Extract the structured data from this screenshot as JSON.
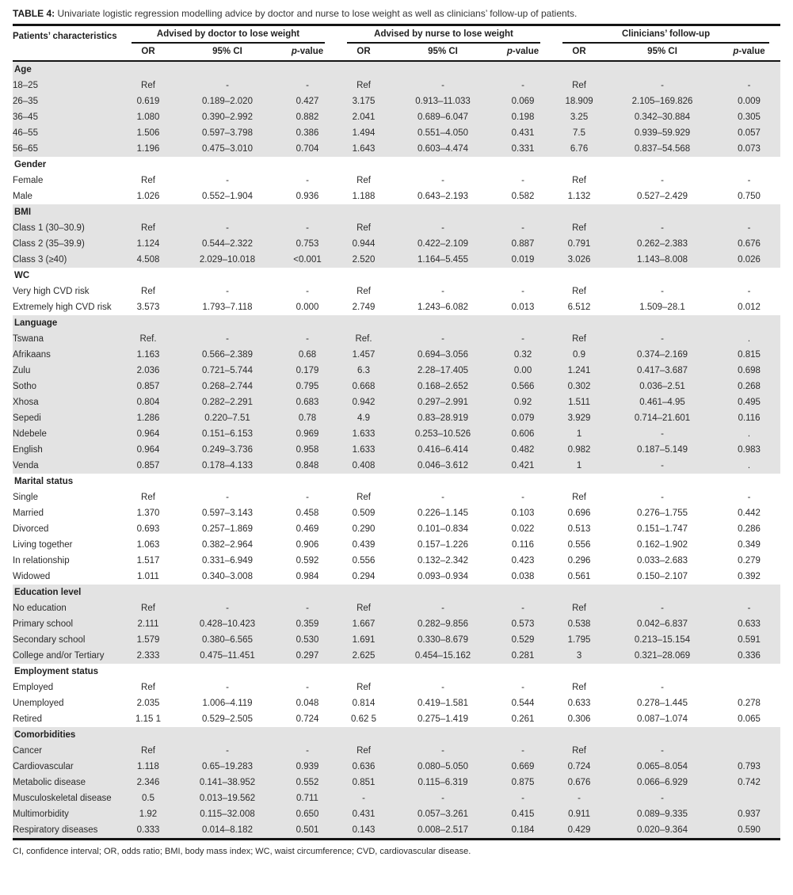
{
  "title": {
    "label": "TABLE 4:",
    "text": "Univariate logistic regression modelling advice by doctor and nurse to lose weight as well as clinicians’ follow-up of patients."
  },
  "header": {
    "row_label": "Patients’ characteristics",
    "groups": [
      "Advised by doctor to lose weight",
      "Advised by nurse to lose weight",
      "Clinicians’ follow-up"
    ],
    "subcols": [
      "OR",
      "95% CI",
      "p-value"
    ]
  },
  "sections": [
    {
      "name": "Age",
      "shade": true,
      "rows": [
        {
          "label": "18–25",
          "cells": [
            "Ref",
            "-",
            "-",
            "Ref",
            "-",
            "-",
            "Ref",
            "-",
            "-"
          ]
        },
        {
          "label": "26–35",
          "cells": [
            "0.619",
            "0.189–2.020",
            "0.427",
            "3.175",
            "0.913–11.033",
            "0.069",
            "18.909",
            "2.105–169.826",
            "0.009"
          ]
        },
        {
          "label": "36–45",
          "cells": [
            "1.080",
            "0.390–2.992",
            "0.882",
            "2.041",
            "0.689–6.047",
            "0.198",
            "3.25",
            "0.342–30.884",
            "0.305"
          ]
        },
        {
          "label": "46–55",
          "cells": [
            "1.506",
            "0.597–3.798",
            "0.386",
            "1.494",
            "0.551–4.050",
            "0.431",
            "7.5",
            "0.939–59.929",
            "0.057"
          ]
        },
        {
          "label": "56–65",
          "cells": [
            "1.196",
            "0.475–3.010",
            "0.704",
            "1.643",
            "0.603–4.474",
            "0.331",
            "6.76",
            "0.837–54.568",
            "0.073"
          ]
        }
      ]
    },
    {
      "name": "Gender",
      "shade": false,
      "rows": [
        {
          "label": "Female",
          "cells": [
            "Ref",
            "-",
            "-",
            "Ref",
            "-",
            "-",
            "Ref",
            "-",
            "-"
          ]
        },
        {
          "label": "Male",
          "cells": [
            "1.026",
            "0.552–1.904",
            "0.936",
            "1.188",
            "0.643–2.193",
            "0.582",
            "1.132",
            "0.527–2.429",
            "0.750"
          ]
        }
      ]
    },
    {
      "name": "BMI",
      "shade": true,
      "rows": [
        {
          "label": "Class 1 (30–30.9)",
          "cells": [
            "Ref",
            "-",
            "-",
            "Ref",
            "-",
            "-",
            "Ref",
            "-",
            "-"
          ]
        },
        {
          "label": "Class 2 (35–39.9)",
          "cells": [
            "1.124",
            "0.544–2.322",
            "0.753",
            "0.944",
            "0.422–2.109",
            "0.887",
            "0.791",
            "0.262–2.383",
            "0.676"
          ]
        },
        {
          "label": "Class 3 (≥40)",
          "cells": [
            "4.508",
            "2.029–10.018",
            "<0.001",
            "2.520",
            "1.164–5.455",
            "0.019",
            "3.026",
            "1.143–8.008",
            "0.026"
          ]
        }
      ]
    },
    {
      "name": "WC",
      "shade": false,
      "rows": [
        {
          "label": "Very high CVD risk",
          "cells": [
            "Ref",
            "-",
            "-",
            "Ref",
            "-",
            "-",
            "Ref",
            "-",
            "-"
          ]
        },
        {
          "label": "Extremely high CVD risk",
          "cells": [
            "3.573",
            "1.793–7.118",
            "0.000",
            "2.749",
            "1.243–6.082",
            "0.013",
            "6.512",
            "1.509–28.1",
            "0.012"
          ]
        }
      ]
    },
    {
      "name": "Language",
      "shade": true,
      "rows": [
        {
          "label": "Tswana",
          "cells": [
            "Ref.",
            "-",
            "-",
            "Ref.",
            "-",
            "-",
            "Ref",
            "-",
            "."
          ]
        },
        {
          "label": "Afrikaans",
          "cells": [
            "1.163",
            "0.566–2.389",
            "0.68",
            "1.457",
            "0.694–3.056",
            "0.32",
            "0.9",
            "0.374–2.169",
            "0.815"
          ]
        },
        {
          "label": "Zulu",
          "cells": [
            "2.036",
            "0.721–5.744",
            "0.179",
            "6.3",
            "2.28–17.405",
            "0.00",
            "1.241",
            "0.417–3.687",
            "0.698"
          ]
        },
        {
          "label": "Sotho",
          "cells": [
            "0.857",
            "0.268–2.744",
            "0.795",
            "0.668",
            "0.168–2.652",
            "0.566",
            "0.302",
            "0.036–2.51",
            "0.268"
          ]
        },
        {
          "label": "Xhosa",
          "cells": [
            "0.804",
            "0.282–2.291",
            "0.683",
            "0.942",
            "0.297–2.991",
            "0.92",
            "1.511",
            "0.461–4.95",
            "0.495"
          ]
        },
        {
          "label": "Sepedi",
          "cells": [
            "1.286",
            "0.220–7.51",
            "0.78",
            "4.9",
            "0.83–28.919",
            "0.079",
            "3.929",
            "0.714–21.601",
            "0.116"
          ]
        },
        {
          "label": "Ndebele",
          "cells": [
            "0.964",
            "0.151–6.153",
            "0.969",
            "1.633",
            "0.253–10.526",
            "0.606",
            "1",
            "-",
            "."
          ]
        },
        {
          "label": "English",
          "cells": [
            "0.964",
            "0.249–3.736",
            "0.958",
            "1.633",
            "0.416–6.414",
            "0.482",
            "0.982",
            "0.187–5.149",
            "0.983"
          ]
        },
        {
          "label": "Venda",
          "cells": [
            "0.857",
            "0.178–4.133",
            "0.848",
            "0.408",
            "0.046–3.612",
            "0.421",
            "1",
            "-",
            "."
          ]
        }
      ]
    },
    {
      "name": "Marital status",
      "shade": false,
      "rows": [
        {
          "label": "Single",
          "cells": [
            "Ref",
            "-",
            "-",
            "Ref",
            "-",
            "-",
            "Ref",
            "-",
            "-"
          ]
        },
        {
          "label": "Married",
          "cells": [
            "1.370",
            "0.597–3.143",
            "0.458",
            "0.509",
            "0.226–1.145",
            "0.103",
            "0.696",
            "0.276–1.755",
            "0.442"
          ]
        },
        {
          "label": "Divorced",
          "cells": [
            "0.693",
            "0.257–1.869",
            "0.469",
            "0.290",
            "0.101–0.834",
            "0.022",
            "0.513",
            "0.151–1.747",
            "0.286"
          ]
        },
        {
          "label": "Living together",
          "cells": [
            "1.063",
            "0.382–2.964",
            "0.906",
            "0.439",
            "0.157–1.226",
            "0.116",
            "0.556",
            "0.162–1.902",
            "0.349"
          ]
        },
        {
          "label": "In relationship",
          "cells": [
            "1.517",
            "0.331–6.949",
            "0.592",
            "0.556",
            "0.132–2.342",
            "0.423",
            "0.296",
            "0.033–2.683",
            "0.279"
          ]
        },
        {
          "label": "Widowed",
          "cells": [
            "1.011",
            "0.340–3.008",
            "0.984",
            "0.294",
            "0.093–0.934",
            "0.038",
            "0.561",
            "0.150–2.107",
            "0.392"
          ]
        }
      ]
    },
    {
      "name": "Education level",
      "shade": true,
      "rows": [
        {
          "label": "No education",
          "cells": [
            "Ref",
            "-",
            "-",
            "Ref",
            "-",
            "-",
            "Ref",
            "-",
            "-"
          ]
        },
        {
          "label": "Primary school",
          "cells": [
            "2.111",
            "0.428–10.423",
            "0.359",
            "1.667",
            "0.282–9.856",
            "0.573",
            "0.538",
            "0.042–6.837",
            "0.633"
          ]
        },
        {
          "label": "Secondary school",
          "cells": [
            "1.579",
            "0.380–6.565",
            "0.530",
            "1.691",
            "0.330–8.679",
            "0.529",
            "1.795",
            "0.213–15.154",
            "0.591"
          ]
        },
        {
          "label": "College and/or Tertiary",
          "cells": [
            "2.333",
            "0.475–11.451",
            "0.297",
            "2.625",
            "0.454–15.162",
            "0.281",
            "3",
            "0.321–28.069",
            "0.336"
          ]
        }
      ]
    },
    {
      "name": "Employment status",
      "shade": false,
      "rows": [
        {
          "label": "Employed",
          "cells": [
            "Ref",
            "-",
            "-",
            "Ref",
            "-",
            "-",
            "Ref",
            "-",
            ""
          ]
        },
        {
          "label": "Unemployed",
          "cells": [
            "2.035",
            "1.006–4.119",
            "0.048",
            "0.814",
            "0.419–1.581",
            "0.544",
            "0.633",
            "0.278–1.445",
            "0.278"
          ]
        },
        {
          "label": "Retired",
          "cells": [
            "1.15 1",
            "0.529–2.505",
            "0.724",
            "0.62 5",
            "0.275–1.419",
            "0.261",
            "0.306",
            "0.087–1.074",
            "0.065"
          ]
        }
      ]
    },
    {
      "name": "Comorbidities",
      "shade": true,
      "rows": [
        {
          "label": "Cancer",
          "cells": [
            "Ref",
            "-",
            "-",
            "Ref",
            "-",
            "-",
            "Ref",
            "-",
            ""
          ]
        },
        {
          "label": "Cardiovascular",
          "cells": [
            "1.118",
            "0.65–19.283",
            "0.939",
            "0.636",
            "0.080–5.050",
            "0.669",
            "0.724",
            "0.065–8.054",
            "0.793"
          ]
        },
        {
          "label": "Metabolic disease",
          "cells": [
            "2.346",
            "0.141–38.952",
            "0.552",
            "0.851",
            "0.115–6.319",
            "0.875",
            "0.676",
            "0.066–6.929",
            "0.742"
          ]
        },
        {
          "label": "Musculoskeletal disease",
          "cells": [
            "0.5",
            "0.013–19.562",
            "0.711",
            "-",
            "-",
            "-",
            "-",
            "-",
            ""
          ]
        },
        {
          "label": "Multimorbidity",
          "cells": [
            "1.92",
            "0.115–32.008",
            "0.650",
            "0.431",
            "0.057–3.261",
            "0.415",
            "0.911",
            "0.089–9.335",
            "0.937"
          ]
        },
        {
          "label": "Respiratory diseases",
          "cells": [
            "0.333",
            "0.014–8.182",
            "0.501",
            "0.143",
            "0.008–2.517",
            "0.184",
            "0.429",
            "0.020–9.364",
            "0.590"
          ]
        }
      ]
    }
  ],
  "footnote": "CI, confidence interval; OR, odds ratio; BMI, body mass index; WC, waist circumference; CVD, cardiovascular disease."
}
